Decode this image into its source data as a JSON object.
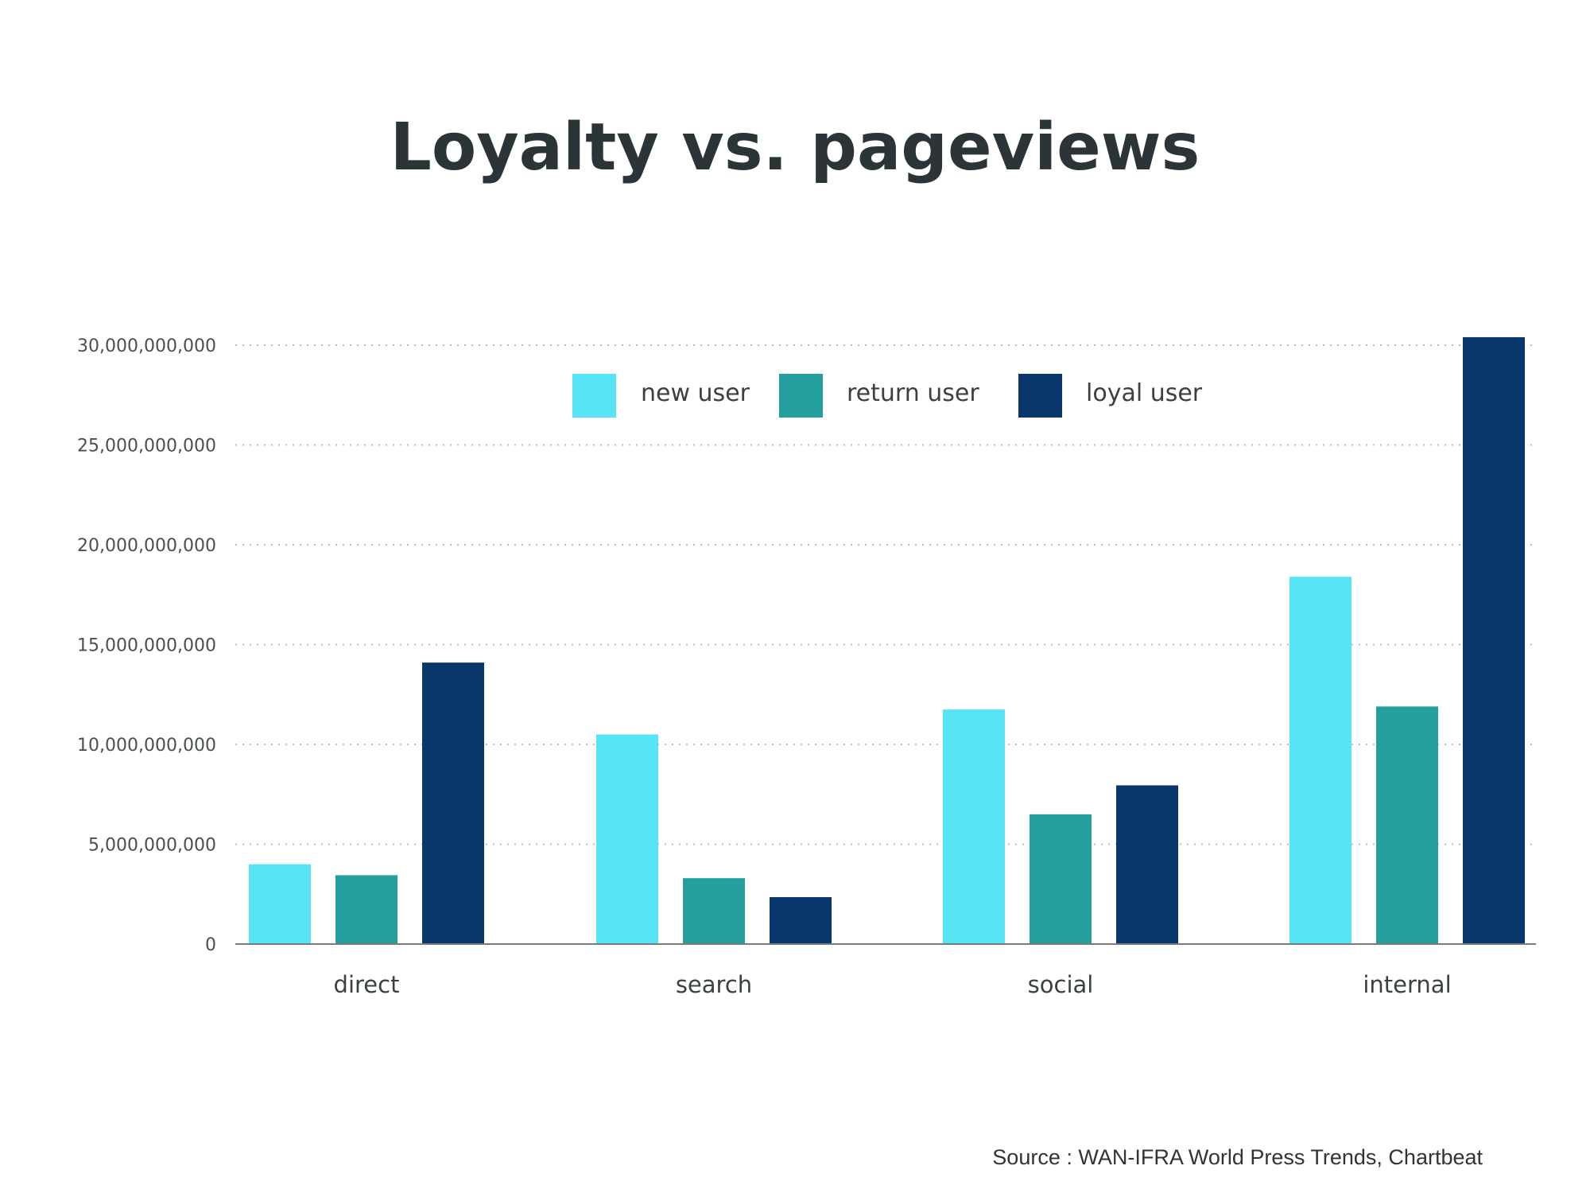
{
  "chart_data": {
    "type": "bar",
    "title": "Loyalty vs. pageviews",
    "categories": [
      "direct",
      "search",
      "social",
      "internal"
    ],
    "series": [
      {
        "name": "new user",
        "color": "#57e5f5",
        "values": [
          4000000000,
          10500000000,
          11750000000,
          18400000000
        ]
      },
      {
        "name": "return user",
        "color": "#259f9d",
        "values": [
          3450000000,
          3300000000,
          6500000000,
          11900000000
        ]
      },
      {
        "name": "loyal user",
        "color": "#09376c",
        "values": [
          14100000000,
          2350000000,
          7950000000,
          30400000000
        ]
      }
    ],
    "ylim": [
      0,
      30000000000
    ],
    "yticks": [
      0,
      5000000000,
      10000000000,
      15000000000,
      20000000000,
      25000000000,
      30000000000
    ],
    "ytick_labels": [
      "0",
      "5,000,000,000",
      "10,000,000,000",
      "15,000,000,000",
      "20,000,000,000",
      "25,000,000,000",
      "30,000,000,000"
    ],
    "xlabel": "",
    "ylabel": "",
    "grid": true,
    "legend_position": "top-center"
  },
  "source": "Source : WAN-IFRA World Press Trends, Chartbeat"
}
